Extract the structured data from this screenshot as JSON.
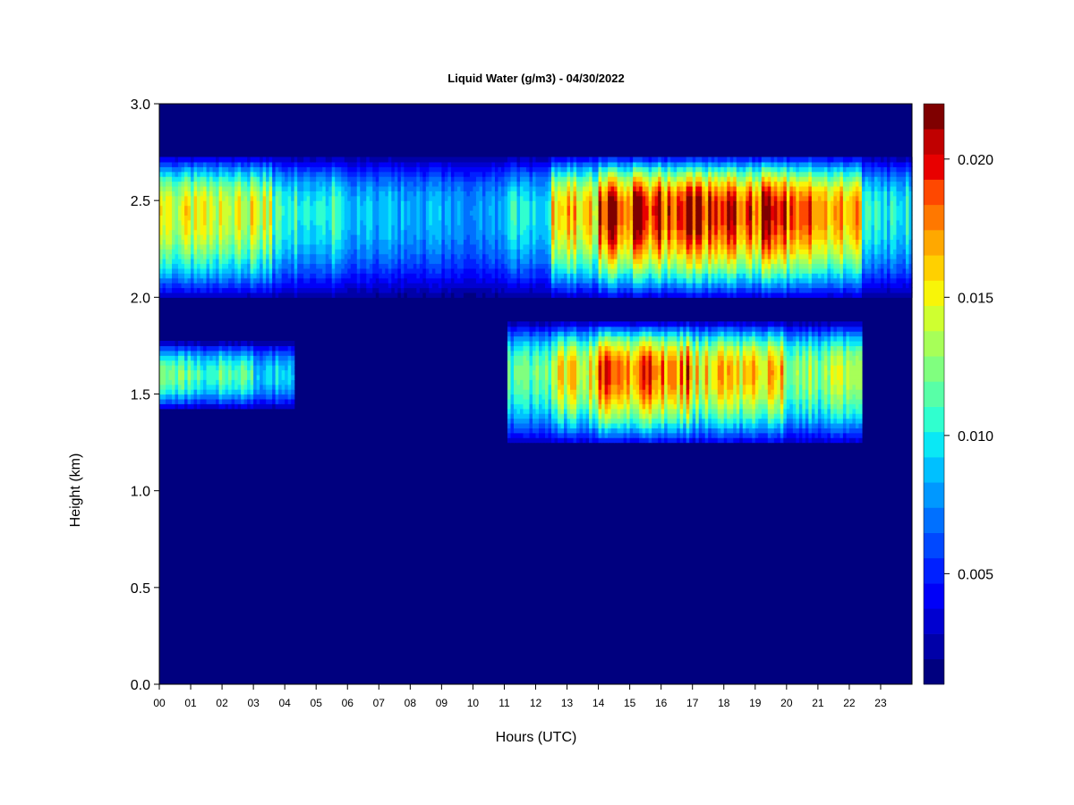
{
  "chart_data": {
    "type": "heatmap",
    "title": "Liquid Water (g/m3) - 04/30/2022",
    "xlabel": "Hours (UTC)",
    "ylabel": "Height (km)",
    "xlim": [
      0,
      24
    ],
    "ylim": [
      0,
      3.0
    ],
    "x_ticks": [
      "00",
      "01",
      "02",
      "03",
      "04",
      "05",
      "06",
      "07",
      "08",
      "09",
      "10",
      "11",
      "12",
      "13",
      "14",
      "15",
      "16",
      "17",
      "18",
      "19",
      "20",
      "21",
      "22",
      "23"
    ],
    "y_ticks": [
      "0.0",
      "0.5",
      "1.0",
      "1.5",
      "2.0",
      "2.5",
      "3.0"
    ],
    "colorbar": {
      "min": 0.001,
      "max": 0.022,
      "levels": 21,
      "tick_values": [
        0.005,
        0.01,
        0.015,
        0.02
      ],
      "tick_labels": [
        "0.005",
        "0.010",
        "0.015",
        "0.020"
      ],
      "colors": [
        "#00007F",
        "#0000A8",
        "#0000D0",
        "#0000F8",
        "#0020FF",
        "#0048FF",
        "#0070FF",
        "#0098FF",
        "#00C0FF",
        "#0AE8F5",
        "#30FFCF",
        "#58FFA7",
        "#80FF7F",
        "#A7FF58",
        "#CFFF30",
        "#F8F508",
        "#FFD000",
        "#FFA800",
        "#FF7800",
        "#FF4800",
        "#E80000",
        "#C00000",
        "#7F0000"
      ]
    },
    "background_value": 0.0,
    "layers": [
      {
        "name": "upper-cloud-layer",
        "height_km": [
          2.0,
          2.73
        ],
        "peak_height_km": 2.45,
        "segments": [
          {
            "x": [
              0.0,
              3.6
            ],
            "peak_value": 0.0145
          },
          {
            "x": [
              3.6,
              5.8
            ],
            "peak_value": 0.011
          },
          {
            "x": [
              5.8,
              8.0
            ],
            "peak_value": 0.0085
          },
          {
            "x": [
              8.0,
              11.0
            ],
            "peak_value": 0.008
          },
          {
            "x": [
              11.0,
              12.5
            ],
            "peak_value": 0.0095
          },
          {
            "x": [
              12.5,
              14.0
            ],
            "peak_value": 0.016
          },
          {
            "x": [
              14.0,
              21.0
            ],
            "peak_value": 0.02
          },
          {
            "x": [
              21.0,
              22.4
            ],
            "peak_value": 0.0175
          },
          {
            "x": [
              22.4,
              24.0
            ],
            "peak_value": 0.01
          }
        ]
      },
      {
        "name": "lower-cloud-layer-early",
        "height_km": [
          1.42,
          1.77
        ],
        "peak_height_km": 1.6,
        "segments": [
          {
            "x": [
              0.0,
              3.0
            ],
            "peak_value": 0.0115
          },
          {
            "x": [
              3.0,
              4.3
            ],
            "peak_value": 0.009
          }
        ]
      },
      {
        "name": "lower-cloud-layer-late",
        "height_km": [
          1.24,
          1.87
        ],
        "peak_height_km": 1.62,
        "segments": [
          {
            "x": [
              11.1,
              12.5
            ],
            "peak_value": 0.012
          },
          {
            "x": [
              12.5,
              14.0
            ],
            "peak_value": 0.0155
          },
          {
            "x": [
              14.0,
              17.0
            ],
            "peak_value": 0.0185
          },
          {
            "x": [
              17.0,
              20.0
            ],
            "peak_value": 0.016
          },
          {
            "x": [
              20.0,
              22.4
            ],
            "peak_value": 0.013
          }
        ]
      }
    ]
  }
}
